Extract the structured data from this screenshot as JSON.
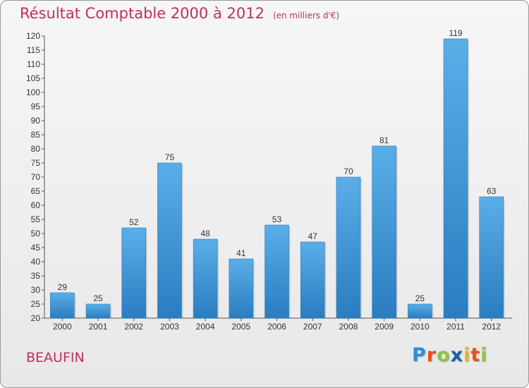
{
  "chart_data": {
    "type": "bar",
    "title": "Résultat Comptable 2000 à 2012",
    "subtitle": "(en milliers d'€)",
    "categories": [
      "2000",
      "2001",
      "2002",
      "2003",
      "2004",
      "2005",
      "2006",
      "2007",
      "2008",
      "2009",
      "2010",
      "2011",
      "2012"
    ],
    "values": [
      29,
      25,
      52,
      75,
      48,
      41,
      53,
      47,
      70,
      81,
      25,
      119,
      63
    ],
    "ylim": [
      20,
      120
    ],
    "yticks": [
      20,
      25,
      30,
      35,
      40,
      45,
      50,
      55,
      60,
      65,
      70,
      75,
      80,
      85,
      90,
      95,
      100,
      105,
      110,
      115,
      120
    ],
    "xlabel": "",
    "ylabel": "",
    "grid": false,
    "bar_color_top": "#5aaee8",
    "bar_color_bottom": "#2a7dc0"
  },
  "place_name": "BEAUFIN",
  "logo": {
    "letters": [
      "P",
      "r",
      "o",
      "x",
      "i",
      "t",
      "i"
    ],
    "colors": [
      "#2a8fd8",
      "#e8501a",
      "#8cc63f",
      "#1a5fa8",
      "#f0b020",
      "#e8501a",
      "#8cc63f"
    ]
  }
}
